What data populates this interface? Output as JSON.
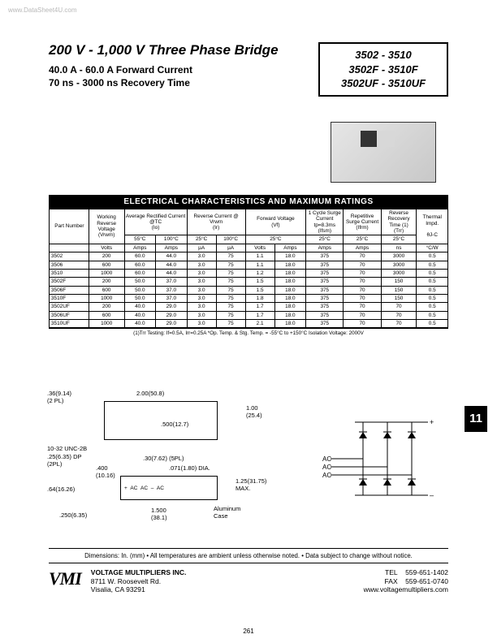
{
  "watermark": "www.DataSheet4U.com",
  "header": {
    "title": "200 V - 1,000 V Three Phase Bridge",
    "sub1": "40.0 A - 60.0 A Forward Current",
    "sub2": "70 ns - 3000 ns Recovery Time",
    "parts": [
      "3502 - 3510",
      "3502F - 3510F",
      "3502UF - 3510UF"
    ]
  },
  "table": {
    "title": "ELECTRICAL CHARACTERISTICS AND MAXIMUM RATINGS",
    "head1": [
      "Part Number",
      "Working Reverse Voltage",
      "Average Rectified Current @TC",
      "Reverse Current @ Vrwm",
      "Forward Voltage",
      "1 Cycle Surge Current tp=8.3ms",
      "Repetitive Surge Current",
      "Reverse Recovery Time (1)",
      "Thermal Impd."
    ],
    "head2": [
      "",
      "(Vrwm)",
      "(Io)",
      "",
      "(Ir)",
      "",
      "(Vf)",
      "(Ifsm)",
      "(Ifrm)",
      "(Trr)",
      "θJ-C"
    ],
    "subtemp": [
      "",
      "",
      "55°C",
      "100°C",
      "25°C",
      "100°C",
      "25°C",
      "25°C",
      "25°C",
      "25°C",
      ""
    ],
    "units": [
      "",
      "Volts",
      "Amps",
      "Amps",
      "µA",
      "µA",
      "Volts",
      "Amps",
      "Amps",
      "Amps",
      "ns",
      "°C/W"
    ],
    "rows": [
      [
        "3502",
        "200",
        "60.0",
        "44.0",
        "3.0",
        "75",
        "1.1",
        "18.0",
        "375",
        "70",
        "3000",
        "0.5"
      ],
      [
        "3506",
        "600",
        "60.0",
        "44.0",
        "3.0",
        "75",
        "1.1",
        "18.0",
        "375",
        "70",
        "3000",
        "0.5"
      ],
      [
        "3510",
        "1000",
        "60.0",
        "44.0",
        "3.0",
        "75",
        "1.2",
        "18.0",
        "375",
        "70",
        "3000",
        "0.5"
      ],
      [
        "3502F",
        "200",
        "50.0",
        "37.0",
        "3.0",
        "75",
        "1.5",
        "18.0",
        "375",
        "70",
        "150",
        "0.5"
      ],
      [
        "3506F",
        "600",
        "50.0",
        "37.0",
        "3.0",
        "75",
        "1.5",
        "18.0",
        "375",
        "70",
        "150",
        "0.5"
      ],
      [
        "3510F",
        "1000",
        "50.0",
        "37.0",
        "3.0",
        "75",
        "1.8",
        "18.0",
        "375",
        "70",
        "150",
        "0.5"
      ],
      [
        "3502UF",
        "200",
        "40.0",
        "29.0",
        "3.0",
        "75",
        "1.7",
        "18.0",
        "375",
        "70",
        "70",
        "0.5"
      ],
      [
        "3506UF",
        "600",
        "40.0",
        "29.0",
        "3.0",
        "75",
        "1.7",
        "18.0",
        "375",
        "70",
        "70",
        "0.5"
      ],
      [
        "3510UF",
        "1000",
        "40.0",
        "29.0",
        "3.0",
        "75",
        "2.1",
        "18.0",
        "375",
        "70",
        "70",
        "0.5"
      ]
    ],
    "footnote": "(1)Trr Testing:  If=0.5A,  Irr=0.25A   *Op. Temp.  &  Stg. Temp. =  -55°C to +150°C   Isolation Voltage: 2000V"
  },
  "drawings": {
    "d1": ".36(9.14)",
    "d1b": "(2 PL)",
    "d2": "2.00(50.8)",
    "d3": ".500(12.7)",
    "d4": "1.00",
    "d4b": "(25.4)",
    "d5": "10-32 UNC-2B",
    "d6": ".25(6.35) DP",
    "d6b": "(2PL)",
    "d7": ".400",
    "d7b": "(10.16)",
    "d8": ".30(7.62) (5PL)",
    "d9": ".071(1.80) DIA.",
    "d10": ".64(16.26)",
    "d11": ".250(6.35)",
    "d12": "1.500",
    "d12b": "(38.1)",
    "d13": "1.25(31.75)",
    "d13b": "MAX.",
    "d14": "Aluminum",
    "d14b": "Case",
    "aclabel": "AC"
  },
  "schematic": {
    "ac": "AC",
    "plus": "+",
    "minus": "–"
  },
  "side_tab": "11",
  "dims_note": "Dimensions: In. (mm) • All temperatures are ambient unless otherwise noted. • Data subject to change without notice.",
  "footer": {
    "logo": "VMI",
    "company": "VOLTAGE MULTIPLIERS INC.",
    "addr1": "8711 W. Roosevelt Rd.",
    "addr2": "Visalia, CA 93291",
    "tel_label": "TEL",
    "tel": "559-651-1402",
    "fax_label": "FAX",
    "fax": "559-651-0740",
    "url": "www.voltagemultipliers.com"
  },
  "page": "261"
}
